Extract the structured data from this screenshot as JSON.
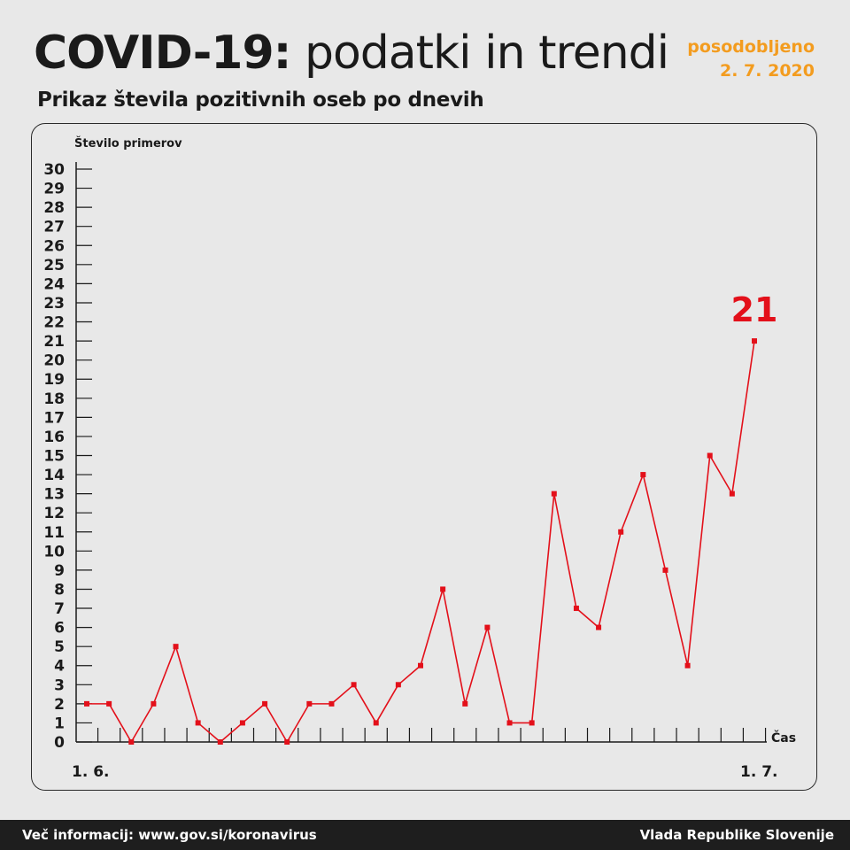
{
  "header": {
    "title_bold": "COVID-19:",
    "title_rest": "podatki in trendi",
    "updated_label": "posodobljeno",
    "updated_date": "2. 7. 2020",
    "subtitle": "Prikaz števila pozitivnih oseb po dnevih"
  },
  "chart_data": {
    "type": "line",
    "title": "Prikaz števila pozitivnih oseb po dnevih",
    "ylabel": "Število primerov",
    "xlabel": "Čas",
    "x_start_label": "1. 6.",
    "x_end_label": "1. 7.",
    "ylim": [
      0,
      30
    ],
    "y_ticks": [
      0,
      1,
      2,
      3,
      4,
      5,
      6,
      7,
      8,
      9,
      10,
      11,
      12,
      13,
      14,
      15,
      16,
      17,
      18,
      19,
      20,
      21,
      22,
      23,
      24,
      25,
      26,
      27,
      28,
      29,
      30
    ],
    "series": [
      {
        "color": "#e3101a",
        "values": [
          2,
          2,
          0,
          2,
          5,
          1,
          0,
          1,
          2,
          0,
          2,
          2,
          3,
          1,
          3,
          4,
          8,
          2,
          6,
          1,
          1,
          13,
          7,
          6,
          11,
          14,
          9,
          4,
          15,
          13,
          21
        ]
      }
    ],
    "last_value_label": "21",
    "grid": false
  },
  "footer": {
    "info": "Več informacij: www.gov.si/koronavirus",
    "source": "Vlada Republike Slovenije"
  }
}
